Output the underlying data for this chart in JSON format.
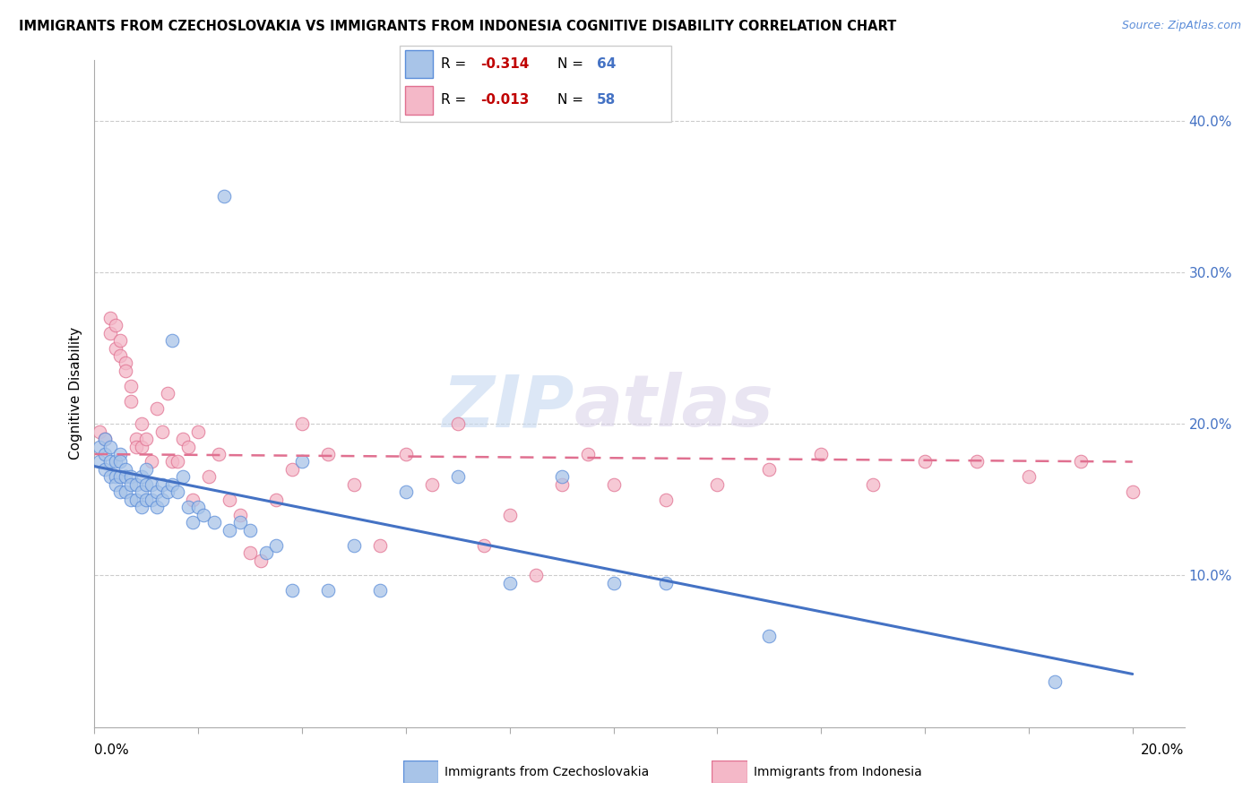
{
  "title": "IMMIGRANTS FROM CZECHOSLOVAKIA VS IMMIGRANTS FROM INDONESIA COGNITIVE DISABILITY CORRELATION CHART",
  "source": "Source: ZipAtlas.com",
  "ylabel": "Cognitive Disability",
  "xlim": [
    0.0,
    0.21
  ],
  "ylim": [
    0.0,
    0.44
  ],
  "color_blue_fill": "#a8c4e8",
  "color_blue_edge": "#5b8dd9",
  "color_pink_fill": "#f4b8c8",
  "color_pink_edge": "#e07090",
  "color_blue_line": "#4472c4",
  "color_pink_line": "#e07090",
  "blue_line_x": [
    0.0,
    0.2
  ],
  "blue_line_y": [
    0.172,
    0.035
  ],
  "pink_line_x": [
    0.0,
    0.2
  ],
  "pink_line_y": [
    0.18,
    0.175
  ],
  "czech_x": [
    0.001,
    0.001,
    0.002,
    0.002,
    0.002,
    0.003,
    0.003,
    0.003,
    0.004,
    0.004,
    0.004,
    0.005,
    0.005,
    0.005,
    0.005,
    0.006,
    0.006,
    0.006,
    0.007,
    0.007,
    0.007,
    0.008,
    0.008,
    0.009,
    0.009,
    0.009,
    0.01,
    0.01,
    0.01,
    0.011,
    0.011,
    0.012,
    0.012,
    0.013,
    0.013,
    0.014,
    0.015,
    0.015,
    0.016,
    0.017,
    0.018,
    0.019,
    0.02,
    0.021,
    0.023,
    0.025,
    0.026,
    0.028,
    0.03,
    0.033,
    0.035,
    0.038,
    0.04,
    0.045,
    0.05,
    0.055,
    0.06,
    0.07,
    0.08,
    0.09,
    0.1,
    0.11,
    0.13,
    0.185
  ],
  "czech_y": [
    0.185,
    0.175,
    0.19,
    0.18,
    0.17,
    0.185,
    0.175,
    0.165,
    0.175,
    0.165,
    0.16,
    0.18,
    0.175,
    0.165,
    0.155,
    0.17,
    0.165,
    0.155,
    0.165,
    0.16,
    0.15,
    0.16,
    0.15,
    0.165,
    0.155,
    0.145,
    0.17,
    0.16,
    0.15,
    0.16,
    0.15,
    0.155,
    0.145,
    0.16,
    0.15,
    0.155,
    0.16,
    0.255,
    0.155,
    0.165,
    0.145,
    0.135,
    0.145,
    0.14,
    0.135,
    0.35,
    0.13,
    0.135,
    0.13,
    0.115,
    0.12,
    0.09,
    0.175,
    0.09,
    0.12,
    0.09,
    0.155,
    0.165,
    0.095,
    0.165,
    0.095,
    0.095,
    0.06,
    0.03
  ],
  "indo_x": [
    0.001,
    0.002,
    0.003,
    0.003,
    0.004,
    0.004,
    0.005,
    0.005,
    0.006,
    0.006,
    0.007,
    0.007,
    0.008,
    0.008,
    0.009,
    0.009,
    0.01,
    0.011,
    0.012,
    0.013,
    0.014,
    0.015,
    0.016,
    0.017,
    0.018,
    0.019,
    0.02,
    0.022,
    0.024,
    0.026,
    0.028,
    0.03,
    0.032,
    0.035,
    0.038,
    0.04,
    0.045,
    0.05,
    0.055,
    0.06,
    0.065,
    0.07,
    0.075,
    0.08,
    0.085,
    0.09,
    0.095,
    0.1,
    0.11,
    0.12,
    0.13,
    0.14,
    0.15,
    0.16,
    0.17,
    0.18,
    0.19,
    0.2
  ],
  "indo_y": [
    0.195,
    0.19,
    0.27,
    0.26,
    0.265,
    0.25,
    0.245,
    0.255,
    0.24,
    0.235,
    0.225,
    0.215,
    0.19,
    0.185,
    0.2,
    0.185,
    0.19,
    0.175,
    0.21,
    0.195,
    0.22,
    0.175,
    0.175,
    0.19,
    0.185,
    0.15,
    0.195,
    0.165,
    0.18,
    0.15,
    0.14,
    0.115,
    0.11,
    0.15,
    0.17,
    0.2,
    0.18,
    0.16,
    0.12,
    0.18,
    0.16,
    0.2,
    0.12,
    0.14,
    0.1,
    0.16,
    0.18,
    0.16,
    0.15,
    0.16,
    0.17,
    0.18,
    0.16,
    0.175,
    0.175,
    0.165,
    0.175,
    0.155
  ]
}
